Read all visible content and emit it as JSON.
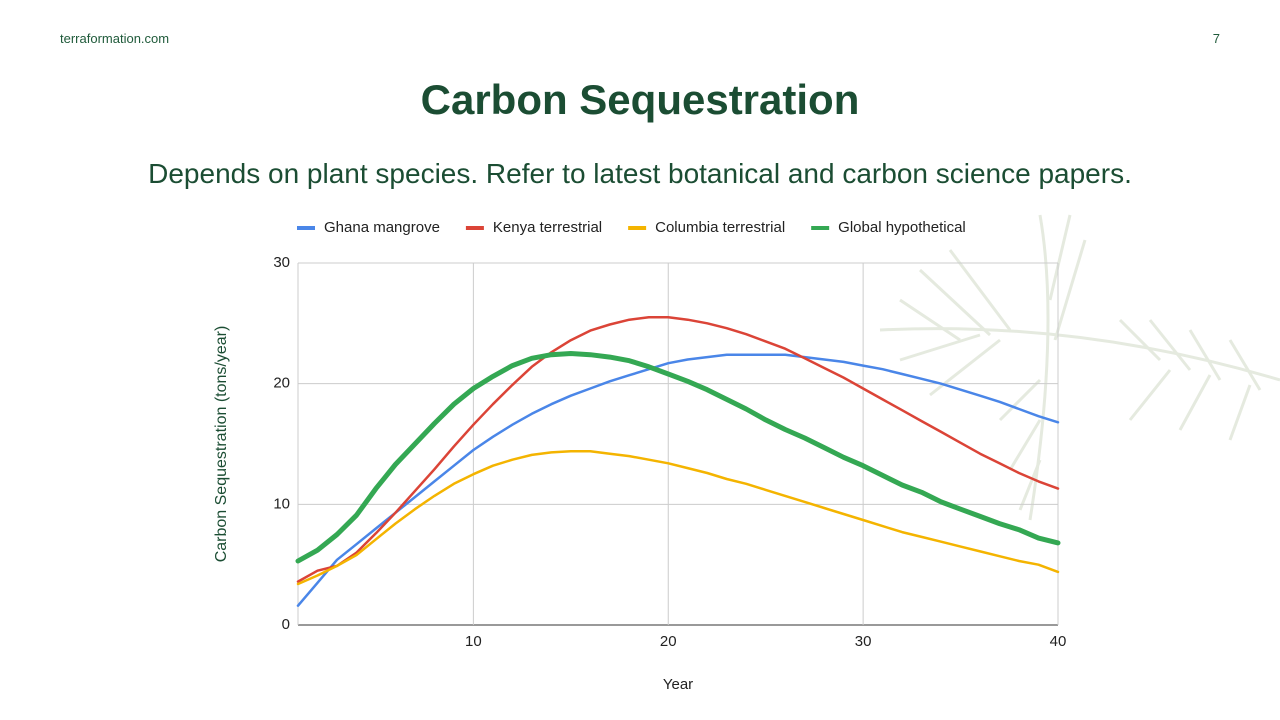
{
  "site": "terraformation.com",
  "page_number": "7",
  "chart_data": {
    "type": "line",
    "title": "Carbon Sequestration",
    "subtitle": "Depends on plant species.  Refer to latest botanical and carbon science papers.",
    "x_label": "Year",
    "y_label": "Carbon Sequestration (tons/year)",
    "x": [
      1,
      2,
      3,
      4,
      5,
      6,
      7,
      8,
      9,
      10,
      11,
      12,
      13,
      14,
      15,
      16,
      17,
      18,
      19,
      20,
      21,
      22,
      23,
      24,
      25,
      26,
      27,
      28,
      29,
      30,
      31,
      32,
      33,
      34,
      35,
      36,
      37,
      38,
      39,
      40
    ],
    "series": [
      {
        "name": "Ghana mangrove",
        "color": "#4a86e8",
        "width": 2.5,
        "values": [
          1.6,
          3.5,
          5.4,
          6.7,
          8.0,
          9.3,
          10.6,
          11.9,
          13.2,
          14.5,
          15.6,
          16.6,
          17.5,
          18.3,
          19.0,
          19.6,
          20.2,
          20.7,
          21.2,
          21.7,
          22.0,
          22.2,
          22.4,
          22.4,
          22.4,
          22.4,
          22.2,
          22.0,
          21.8,
          21.5,
          21.2,
          20.8,
          20.4,
          20.0,
          19.5,
          19.0,
          18.5,
          17.9,
          17.3,
          16.8
        ]
      },
      {
        "name": "Kenya terrestrial",
        "color": "#db4437",
        "width": 2.5,
        "values": [
          3.6,
          4.5,
          4.9,
          6.0,
          7.6,
          9.3,
          11.1,
          12.9,
          14.8,
          16.6,
          18.3,
          19.9,
          21.4,
          22.6,
          23.6,
          24.4,
          24.9,
          25.3,
          25.5,
          25.5,
          25.3,
          25.0,
          24.6,
          24.1,
          23.5,
          22.9,
          22.1,
          21.3,
          20.5,
          19.6,
          18.7,
          17.8,
          16.9,
          16.0,
          15.1,
          14.2,
          13.4,
          12.6,
          11.9,
          11.3
        ]
      },
      {
        "name": "Columbia terrestrial",
        "color": "#f4b400",
        "width": 2.5,
        "values": [
          3.4,
          4.1,
          4.9,
          5.8,
          7.1,
          8.4,
          9.6,
          10.7,
          11.7,
          12.5,
          13.2,
          13.7,
          14.1,
          14.3,
          14.4,
          14.4,
          14.2,
          14.0,
          13.7,
          13.4,
          13.0,
          12.6,
          12.1,
          11.7,
          11.2,
          10.7,
          10.2,
          9.7,
          9.2,
          8.7,
          8.2,
          7.7,
          7.3,
          6.9,
          6.5,
          6.1,
          5.7,
          5.3,
          5.0,
          4.4
        ]
      },
      {
        "name": "Global hypothetical",
        "color": "#34a853",
        "width": 5,
        "values": [
          5.3,
          6.2,
          7.5,
          9.1,
          11.3,
          13.3,
          15.0,
          16.7,
          18.3,
          19.6,
          20.6,
          21.5,
          22.1,
          22.4,
          22.5,
          22.4,
          22.2,
          21.9,
          21.4,
          20.8,
          20.2,
          19.5,
          18.7,
          17.9,
          17.0,
          16.2,
          15.5,
          14.7,
          13.9,
          13.2,
          12.4,
          11.6,
          11.0,
          10.2,
          9.6,
          9.0,
          8.4,
          7.9,
          7.2,
          6.8
        ]
      }
    ],
    "xlim": [
      1,
      40
    ],
    "xticks": [
      10,
      20,
      30,
      40
    ],
    "ylim": [
      0,
      30
    ],
    "yticks": [
      0,
      10,
      20,
      30
    ],
    "grid": true,
    "legend": "top"
  }
}
